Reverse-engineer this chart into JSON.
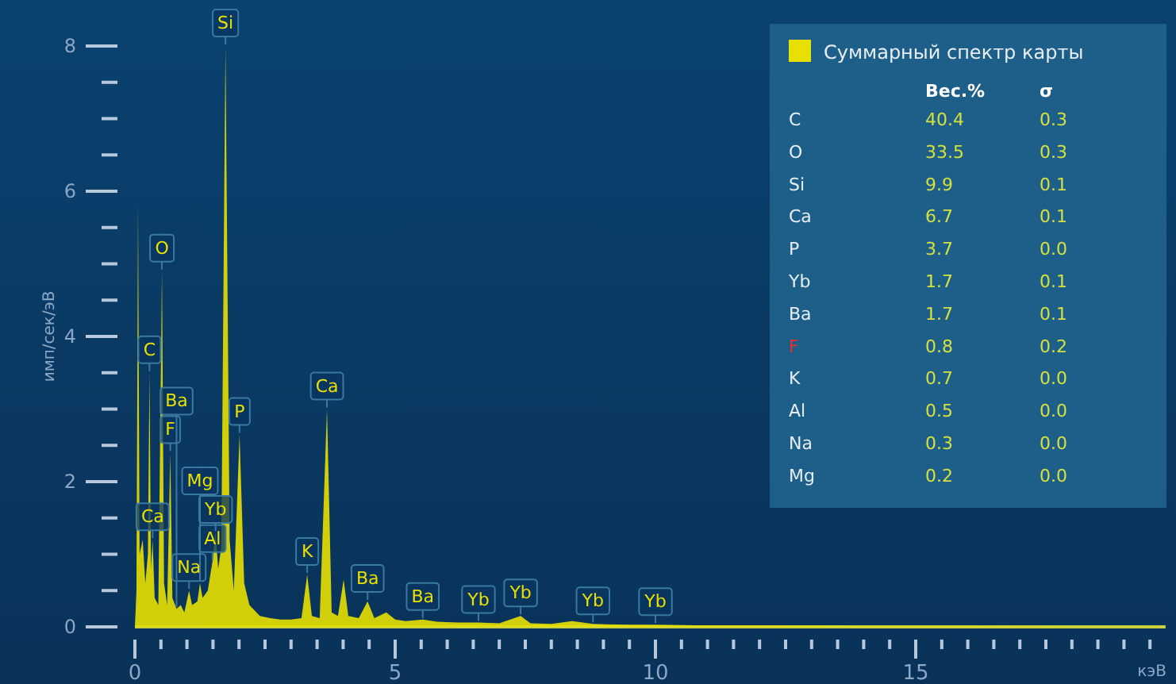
{
  "chart_data": [
    {
      "type": "area",
      "xlabel": "кэВ",
      "ylabel": "имп/сек/эВ",
      "legend": "top right",
      "xlim": [
        0,
        19.8
      ],
      "ylim": [
        0,
        8
      ],
      "xticks": [
        0,
        {
          "value": 0.5,
          "label": null
        },
        {
          "value": 1,
          "label": null
        },
        {
          "value": 1.5,
          "label": null
        },
        {
          "value": 2,
          "label": null
        },
        {
          "value": 2.5,
          "label": null
        },
        {
          "value": 3,
          "label": null
        },
        {
          "value": 3.5,
          "label": null
        },
        {
          "value": 4,
          "label": null
        },
        {
          "value": 4.5,
          "label": null
        },
        5,
        {
          "value": 5.5,
          "label": null
        },
        {
          "value": 6,
          "label": null
        },
        {
          "value": 6.5,
          "label": null
        },
        {
          "value": 7,
          "label": null
        },
        {
          "value": 7.5,
          "label": null
        },
        {
          "value": 8,
          "label": null
        },
        {
          "value": 8.5,
          "label": null
        },
        {
          "value": 9,
          "label": null
        },
        {
          "value": 9.5,
          "label": null
        },
        10,
        {
          "value": 10.5,
          "label": null
        },
        {
          "value": 11,
          "label": null
        },
        {
          "value": 11.5,
          "label": null
        },
        {
          "value": 12,
          "label": null
        },
        {
          "value": 12.5,
          "label": null
        },
        {
          "value": 13,
          "label": null
        },
        {
          "value": 13.5,
          "label": null
        },
        {
          "value": 14,
          "label": null
        },
        {
          "value": 14.5,
          "label": null
        },
        15,
        {
          "value": 15.5,
          "label": null
        },
        {
          "value": 16,
          "label": null
        },
        {
          "value": 16.5,
          "label": null
        },
        {
          "value": 17,
          "label": null
        },
        {
          "value": 17.5,
          "label": null
        },
        {
          "value": 18,
          "label": null
        },
        {
          "value": 18.5,
          "label": null
        },
        {
          "value": 19,
          "label": null
        },
        {
          "value": 19.5,
          "label": null
        }
      ],
      "yticks": [
        0,
        {
          "value": 0.5,
          "label": null
        },
        {
          "value": 1,
          "label": null
        },
        {
          "value": 1.5,
          "label": null
        },
        2,
        {
          "value": 2.5,
          "label": null
        },
        {
          "value": 3,
          "label": null
        },
        {
          "value": 3.5,
          "label": null
        },
        4,
        {
          "value": 4.5,
          "label": null
        },
        {
          "value": 5,
          "label": null
        },
        {
          "value": 5.5,
          "label": null
        },
        6,
        {
          "value": 6.5,
          "label": null
        },
        {
          "value": 7,
          "label": null
        },
        {
          "value": 7.5,
          "label": null
        },
        8
      ],
      "series": [
        {
          "name": "Суммарный спектр карты",
          "color": "#e8e000",
          "x": [
            0,
            0.03,
            0.06,
            0.09,
            0.15,
            0.2,
            0.25,
            0.28,
            0.31,
            0.34,
            0.38,
            0.45,
            0.52,
            0.56,
            0.62,
            0.68,
            0.72,
            0.8,
            0.88,
            0.95,
            1.04,
            1.1,
            1.2,
            1.25,
            1.3,
            1.4,
            1.49,
            1.55,
            1.6,
            1.66,
            1.74,
            1.82,
            1.9,
            2.01,
            2.1,
            2.2,
            2.4,
            2.6,
            2.8,
            3.0,
            3.2,
            3.31,
            3.4,
            3.55,
            3.69,
            3.78,
            3.9,
            4.01,
            4.1,
            4.3,
            4.47,
            4.6,
            4.83,
            5.0,
            5.2,
            5.53,
            5.8,
            6.2,
            6.6,
            7.0,
            7.41,
            7.6,
            8.0,
            8.4,
            8.8,
            9.5,
            10.0,
            11,
            12,
            14,
            16,
            19.8
          ],
          "values": [
            0,
            0.5,
            5.8,
            1.0,
            1.2,
            0.6,
            1.0,
            3.5,
            0.8,
            1.2,
            0.4,
            0.3,
            4.9,
            0.6,
            0.3,
            2.4,
            0.4,
            0.25,
            0.3,
            0.2,
            0.5,
            0.3,
            0.35,
            0.6,
            0.4,
            0.5,
            0.9,
            1.3,
            0.8,
            1.1,
            8.0,
            1.2,
            0.5,
            2.65,
            0.6,
            0.3,
            0.15,
            0.12,
            0.1,
            0.1,
            0.12,
            0.72,
            0.15,
            0.12,
            3.0,
            0.2,
            0.15,
            0.65,
            0.15,
            0.12,
            0.35,
            0.12,
            0.2,
            0.1,
            0.08,
            0.1,
            0.07,
            0.06,
            0.06,
            0.05,
            0.15,
            0.05,
            0.04,
            0.08,
            0.04,
            0.03,
            0.03,
            0.02,
            0.02,
            0.01,
            0.01,
            0
          ]
        }
      ],
      "annotations": [
        {
          "text": "Si",
          "x": 1.74,
          "y": 8.0
        },
        {
          "text": "O",
          "x": 0.52,
          "y": 4.9
        },
        {
          "text": "C",
          "x": 0.28,
          "y": 3.5
        },
        {
          "text": "P",
          "x": 2.01,
          "y": 2.65
        },
        {
          "text": "F",
          "x": 0.68,
          "y": 2.4
        },
        {
          "text": "Al",
          "x": 1.49,
          "y": 0.9
        },
        {
          "text": "Na",
          "x": 1.04,
          "y": 0.5
        },
        {
          "text": "Yb",
          "x": 1.55,
          "y": 1.3
        },
        {
          "text": "Mg",
          "x": 1.25,
          "y": 0.6
        },
        {
          "text": "Ca",
          "x": 0.34,
          "y": 1.2
        },
        {
          "text": "Ba",
          "x": 0.8,
          "y": 0.25
        },
        {
          "text": "Ca",
          "x": 3.69,
          "y": 3.0
        },
        {
          "text": "K",
          "x": 3.31,
          "y": 0.72
        },
        {
          "text": "Ba",
          "x": 4.47,
          "y": 0.35
        },
        {
          "text": "Ba",
          "x": 5.53,
          "y": 0.1
        },
        {
          "text": "Yb",
          "x": 6.6,
          "y": 0.06
        },
        {
          "text": "Yb",
          "x": 7.41,
          "y": 0.15
        },
        {
          "text": "Yb",
          "x": 8.8,
          "y": 0.04
        },
        {
          "text": "Yb",
          "x": 10.0,
          "y": 0.03
        }
      ]
    },
    {
      "type": "other",
      "categories": [
        "C",
        "O",
        "Si",
        "Ca",
        "P",
        "Yb",
        "Ba",
        "F",
        "K",
        "Al",
        "Na",
        "Mg"
      ],
      "colors": [
        "#e6eef6",
        "#e6eef6",
        "#e6eef6",
        "#e6eef6",
        "#e6eef6",
        "#e6eef6",
        "#e6eef6",
        "#e8302a",
        "#e6eef6",
        "#e6eef6",
        "#e6eef6",
        "#e6eef6"
      ],
      "series": [
        {
          "name": "Вес.%",
          "values": [
            40.4,
            33.5,
            9.9,
            6.7,
            3.7,
            1.7,
            1.7,
            0.8,
            0.7,
            0.5,
            0.3,
            0.2
          ],
          "value_labels": [
            "40.4",
            "33.5",
            "9.9",
            "6.7",
            "3.7",
            "1.7",
            "1.7",
            "0.8",
            "0.7",
            "0.5",
            "0.3",
            "0.2"
          ]
        },
        {
          "name": "σ",
          "values": [
            0.3,
            0.3,
            0.1,
            0.1,
            0.0,
            0.1,
            0.1,
            0.2,
            0.0,
            0.0,
            0.0,
            0.0
          ],
          "value_labels": [
            "0.3",
            "0.3",
            "0.1",
            "0.1",
            "0.0",
            "0.1",
            "0.1",
            "0.2",
            "0.0",
            "0.0",
            "0.0",
            "0.0"
          ]
        }
      ]
    }
  ]
}
